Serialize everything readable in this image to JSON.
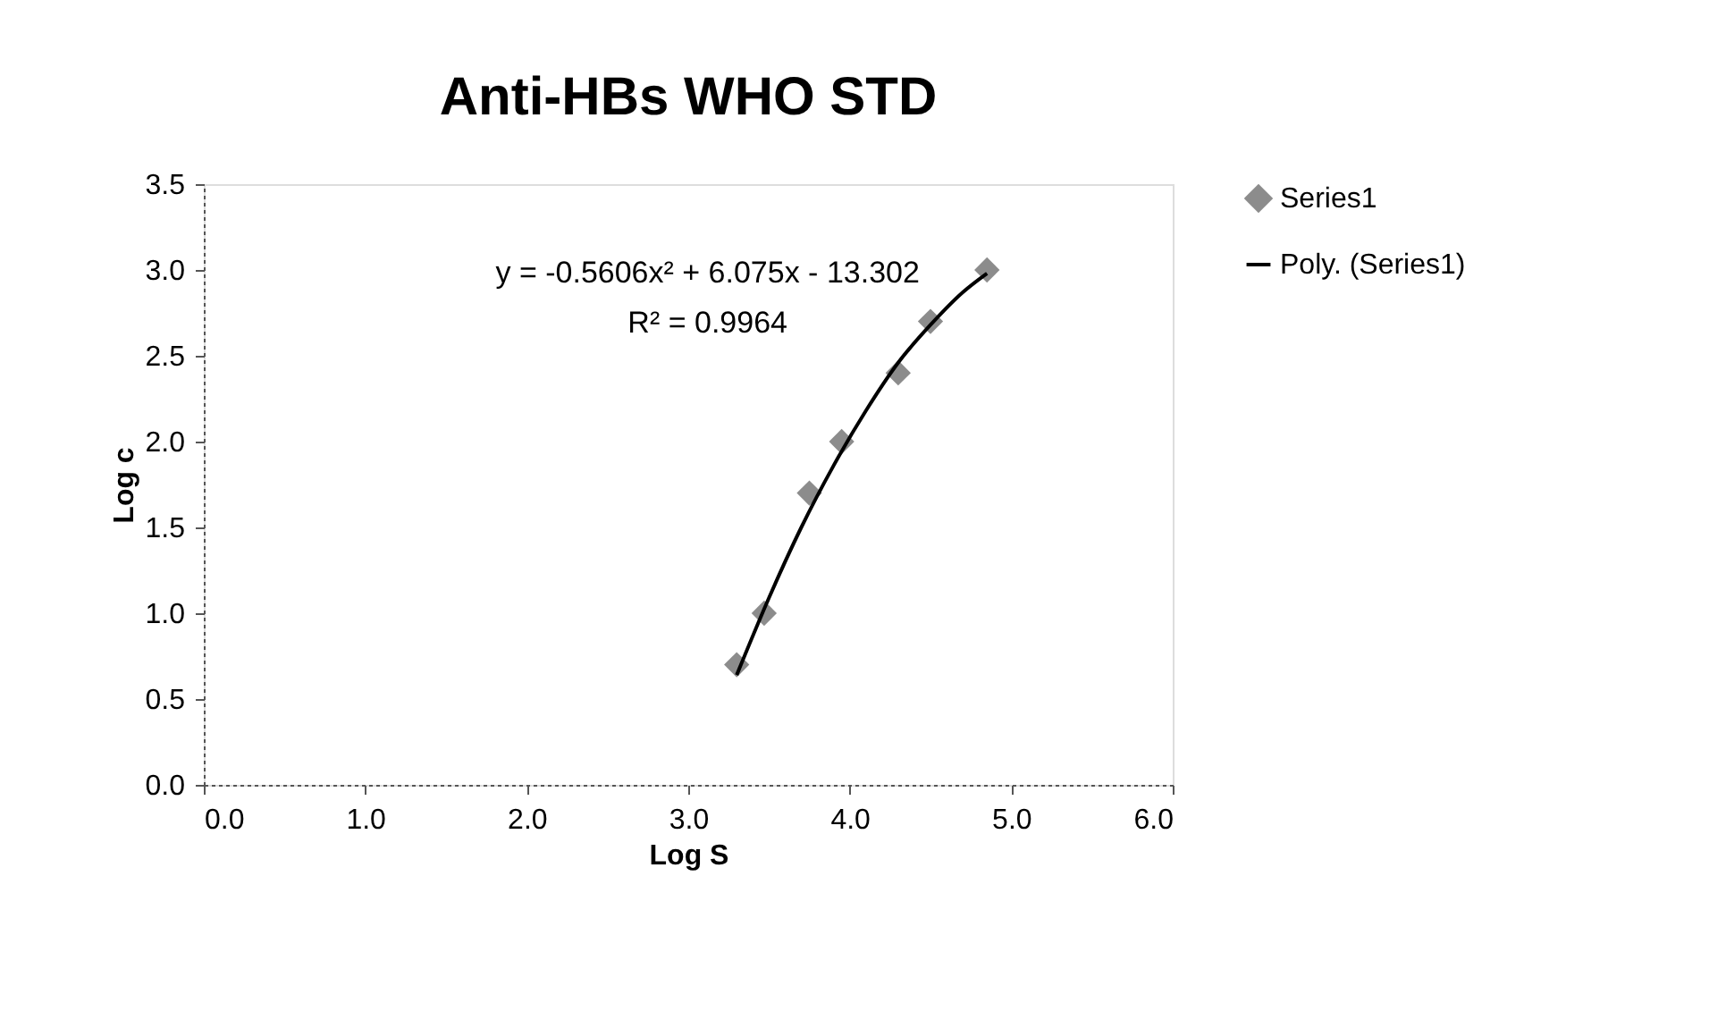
{
  "chart_data": {
    "type": "scatter",
    "title": "Anti-HBs WHO STD",
    "xlabel": "Log S",
    "ylabel": "Log c",
    "annotations": [
      "y = -0.5606x² + 6.075x - 13.302",
      "R² = 0.9964"
    ],
    "series": [
      {
        "name": "Series1",
        "color": "#8c8c8c",
        "marker": "diamond",
        "x": [
          3.3,
          3.47,
          3.75,
          3.95,
          4.3,
          4.5,
          4.85
        ],
        "values": [
          0.7,
          1.0,
          1.7,
          2.0,
          2.4,
          2.7,
          3.0
        ]
      },
      {
        "name": "Poly. (Series1)",
        "type": "line",
        "color": "#000000",
        "marker": "none",
        "line_style": "solid",
        "x": [
          3.3,
          3.5,
          3.7,
          3.9,
          4.1,
          4.3,
          4.5,
          4.7,
          4.85
        ],
        "values": [
          0.64,
          1.09,
          1.5,
          1.86,
          2.18,
          2.46,
          2.68,
          2.87,
          2.98
        ]
      }
    ],
    "xlim": [
      0,
      6
    ],
    "ylim": [
      0,
      3.5
    ],
    "xticks": [
      {
        "value": 0,
        "label": "0.0"
      },
      {
        "value": 1,
        "label": "1.0"
      },
      {
        "value": 2,
        "label": "2.0"
      },
      {
        "value": 3,
        "label": "3.0"
      },
      {
        "value": 4,
        "label": "4.0"
      },
      {
        "value": 5,
        "label": "5.0"
      },
      {
        "value": 6,
        "label": "6.0"
      }
    ],
    "yticks": [
      {
        "value": 0,
        "label": "0.0"
      },
      {
        "value": 0.5,
        "label": "0.5"
      },
      {
        "value": 1,
        "label": "1.0"
      },
      {
        "value": 1.5,
        "label": "1.5"
      },
      {
        "value": 2,
        "label": "2.0"
      },
      {
        "value": 2.5,
        "label": "2.5"
      },
      {
        "value": 3,
        "label": "3.0"
      },
      {
        "value": 3.5,
        "label": "3.5"
      }
    ],
    "grid": false,
    "legend": "right"
  }
}
